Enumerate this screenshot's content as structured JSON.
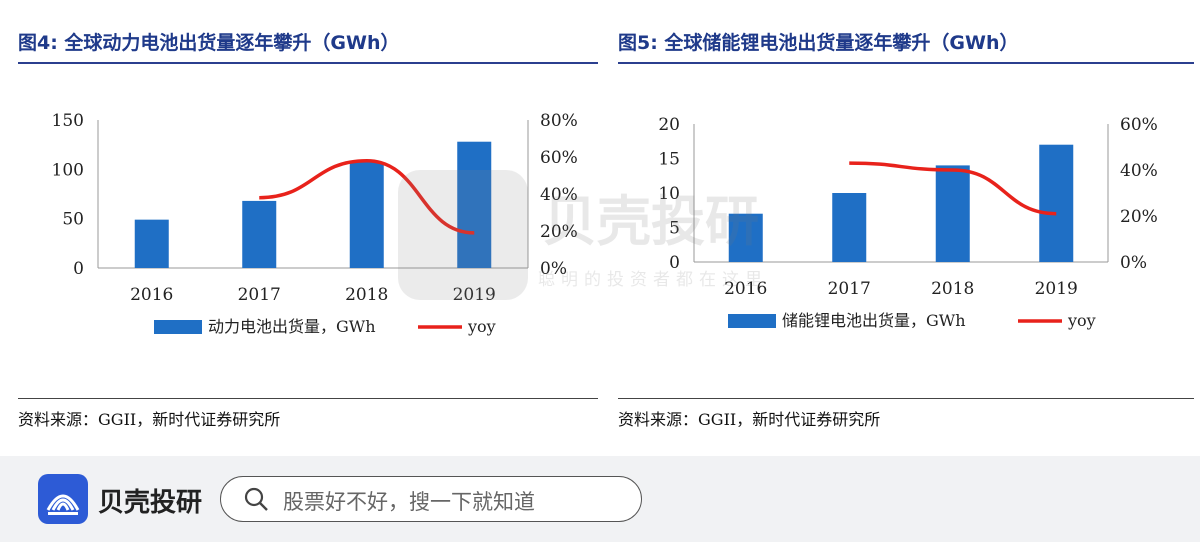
{
  "left": {
    "title": "图4:   全球动力电池出货量逐年攀升（GWh）",
    "source": "资料来源：GGII，新时代证券研究所"
  },
  "right": {
    "title": "图5:   全球储能锂电池出货量逐年攀升（GWh）",
    "source": "资料来源：GGII，新时代证券研究所"
  },
  "chart_data": [
    {
      "type": "bar",
      "categories": [
        "2016",
        "2017",
        "2018",
        "2019"
      ],
      "series": [
        {
          "name": "动力电池出货量，GWh",
          "type": "bar",
          "axis": "left",
          "values": [
            49,
            68,
            107,
            128
          ]
        },
        {
          "name": "yoy",
          "type": "line",
          "axis": "right",
          "values": [
            null,
            38,
            58,
            19
          ]
        }
      ],
      "y_left": {
        "min": 0,
        "max": 150,
        "ticks": [
          "0",
          "50",
          "100",
          "150"
        ]
      },
      "y_right": {
        "min": 0,
        "max": 80,
        "ticks": [
          "0%",
          "20%",
          "40%",
          "60%",
          "80%"
        ]
      },
      "legend_position": "bottom",
      "colors": {
        "bar": "#1f6fc5",
        "line": "#e8221b"
      }
    },
    {
      "type": "bar",
      "categories": [
        "2016",
        "2017",
        "2018",
        "2019"
      ],
      "series": [
        {
          "name": "储能锂电池出货量，GWh",
          "type": "bar",
          "axis": "left",
          "values": [
            7,
            10,
            14,
            17
          ]
        },
        {
          "name": "yoy",
          "type": "line",
          "axis": "right",
          "values": [
            null,
            43,
            40,
            21
          ]
        }
      ],
      "y_left": {
        "min": 0,
        "max": 20,
        "ticks": [
          "0",
          "5",
          "10",
          "15",
          "20"
        ]
      },
      "y_right": {
        "min": 0,
        "max": 60,
        "ticks": [
          "0%",
          "20%",
          "40%",
          "60%"
        ]
      },
      "legend_position": "bottom",
      "colors": {
        "bar": "#1f6fc5",
        "line": "#e8221b"
      }
    }
  ],
  "footer": {
    "brand": "贝壳投研",
    "search_placeholder": "股票好不好，搜一下就知道",
    "accent": "#2d5bd6"
  },
  "watermark": {
    "brand": "贝壳投研",
    "slogan": "聪明的投资者都在这里"
  }
}
